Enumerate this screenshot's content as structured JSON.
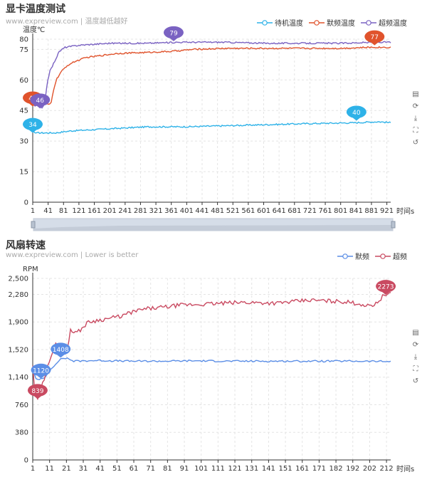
{
  "chart_data": [
    {
      "type": "line",
      "title": "显卡温度测试",
      "subtitle": "www.expreview.com | 温度越低越好",
      "ylabel": "温度℃",
      "xlabel": "时间s",
      "ylim": [
        0,
        80
      ],
      "yticks": [
        0,
        15,
        30,
        45,
        60,
        75,
        80
      ],
      "xlim": [
        1,
        931
      ],
      "xtick_labels": [
        "1",
        "41",
        "81",
        "121",
        "161",
        "201",
        "241",
        "281",
        "321",
        "361",
        "401",
        "441",
        "481",
        "521",
        "561",
        "601",
        "641",
        "681",
        "721",
        "761",
        "801",
        "841",
        "881",
        "921"
      ],
      "series": [
        {
          "name": "待机温度",
          "color": "#2eb2e8",
          "points": [
            [
              1,
              36
            ],
            [
              5,
              34
            ],
            [
              40,
              34
            ],
            [
              60,
              34
            ],
            [
              100,
              35
            ],
            [
              200,
              36
            ],
            [
              300,
              37
            ],
            [
              400,
              37
            ],
            [
              500,
              37.5
            ],
            [
              600,
              38
            ],
            [
              700,
              38.5
            ],
            [
              840,
              39
            ],
            [
              900,
              39.5
            ],
            [
              931,
              39
            ]
          ],
          "markers": [
            {
              "x": 1,
              "y": 34,
              "label": "34"
            },
            {
              "x": 842,
              "y": 40,
              "label": "40"
            }
          ]
        },
        {
          "name": "默频温度",
          "color": "#e0532c",
          "points": [
            [
              1,
              50
            ],
            [
              5,
              47
            ],
            [
              15,
              48
            ],
            [
              35,
              48
            ],
            [
              45,
              48
            ],
            [
              48,
              48
            ],
            [
              55,
              55
            ],
            [
              62,
              60
            ],
            [
              75,
              64
            ],
            [
              90,
              67
            ],
            [
              110,
              69
            ],
            [
              140,
              71
            ],
            [
              180,
              72
            ],
            [
              220,
              73
            ],
            [
              300,
              73.5
            ],
            [
              360,
              74
            ],
            [
              420,
              75
            ],
            [
              500,
              75.5
            ],
            [
              600,
              75.5
            ],
            [
              700,
              75.5
            ],
            [
              800,
              75.5
            ],
            [
              880,
              76
            ],
            [
              931,
              76
            ]
          ],
          "markers": [
            {
              "x": 1,
              "y": 47,
              "label": "47"
            },
            {
              "x": 889,
              "y": 77,
              "label": "77"
            }
          ]
        },
        {
          "name": "超频温度",
          "color": "#7a62c2",
          "points": [
            [
              1,
              50
            ],
            [
              5,
              47
            ],
            [
              15,
              48
            ],
            [
              25,
              46
            ],
            [
              32,
              48
            ],
            [
              38,
              58
            ],
            [
              45,
              64
            ],
            [
              55,
              68
            ],
            [
              70,
              74
            ],
            [
              85,
              76
            ],
            [
              120,
              77
            ],
            [
              200,
              78
            ],
            [
              300,
              78
            ],
            [
              380,
              78.5
            ],
            [
              500,
              78.5
            ],
            [
              600,
              78
            ],
            [
              700,
              78
            ],
            [
              800,
              78
            ],
            [
              900,
              78.5
            ],
            [
              931,
              78.5
            ]
          ],
          "markers": [
            {
              "x": 20,
              "y": 46,
              "label": "46"
            },
            {
              "x": 367,
              "y": 79,
              "label": "79"
            }
          ]
        }
      ],
      "legend": "top-right",
      "grid": true,
      "datazoom": true
    },
    {
      "type": "line",
      "title": "风扇转速",
      "subtitle": "www.expreview.com | Lower is better",
      "ylabel": "RPM",
      "xlabel": "时间s",
      "ylim": [
        0,
        2500
      ],
      "yticks": [
        0,
        380,
        760,
        1140,
        1520,
        1900,
        2280,
        2500
      ],
      "ytick_labels": [
        "0",
        "380",
        "760",
        "1,140",
        "1,520",
        "1,900",
        "2,280",
        "2,500"
      ],
      "xlim": [
        1,
        219
      ],
      "xtick_labels": [
        "1",
        "11",
        "21",
        "31",
        "41",
        "51",
        "61",
        "71",
        "81",
        "91",
        "101",
        "111",
        "121",
        "131",
        "141",
        "151",
        "161",
        "171",
        "182",
        "192",
        "202",
        "212"
      ],
      "series": [
        {
          "name": "默频",
          "color": "#5b8ee6",
          "points": [
            [
              1,
              1300
            ],
            [
              2,
              1180
            ],
            [
              3,
              1120
            ],
            [
              4,
              1110
            ],
            [
              8,
              1120
            ],
            [
              12,
              1250
            ],
            [
              16,
              1350
            ],
            [
              19,
              1400
            ],
            [
              22,
              1400
            ],
            [
              26,
              1360
            ],
            [
              40,
              1370
            ],
            [
              60,
              1360
            ],
            [
              80,
              1360
            ],
            [
              100,
              1365
            ],
            [
              120,
              1360
            ],
            [
              140,
              1360
            ],
            [
              160,
              1360
            ],
            [
              180,
              1360
            ],
            [
              200,
              1360
            ],
            [
              219,
              1355
            ]
          ],
          "markers": [
            {
              "x": 6,
              "y": 1120,
              "label": "1120"
            },
            {
              "x": 18,
              "y": 1408,
              "label": "1408"
            }
          ]
        },
        {
          "name": "超频",
          "color": "#c94a61",
          "points": [
            [
              1,
              1300
            ],
            [
              2,
              1000
            ],
            [
              3,
              880
            ],
            [
              4,
              839
            ],
            [
              7,
              1050
            ],
            [
              11,
              1350
            ],
            [
              15,
              1600
            ],
            [
              19,
              1600
            ],
            [
              22,
              1500
            ],
            [
              24,
              1800
            ],
            [
              28,
              1750
            ],
            [
              35,
              1900
            ],
            [
              45,
              1940
            ],
            [
              55,
              1980
            ],
            [
              62,
              2040
            ],
            [
              70,
              2080
            ],
            [
              80,
              2100
            ],
            [
              90,
              2130
            ],
            [
              110,
              2150
            ],
            [
              130,
              2170
            ],
            [
              150,
              2160
            ],
            [
              170,
              2200
            ],
            [
              190,
              2180
            ],
            [
              200,
              2150
            ],
            [
              205,
              2120
            ],
            [
              210,
              2150
            ],
            [
              215,
              2273
            ],
            [
              219,
              2280
            ]
          ],
          "markers": [
            {
              "x": 4,
              "y": 839,
              "label": "839"
            },
            {
              "x": 216,
              "y": 2273,
              "label": "2273"
            }
          ]
        }
      ],
      "legend": "top-right",
      "grid": true
    }
  ],
  "toolbox": {
    "icons": [
      "data-view-icon",
      "restore-icon",
      "save-image-icon",
      "zoom-icon",
      "zoom-reset-icon"
    ],
    "glyphs": [
      "▤",
      "⟳",
      "⤓",
      "⛶",
      "↺"
    ]
  }
}
